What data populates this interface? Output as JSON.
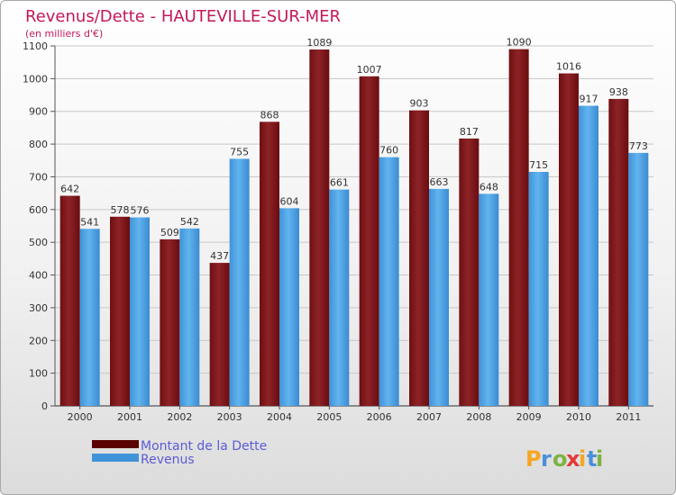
{
  "colors": {
    "title": "#c2185b",
    "dette": "#8b1a1a",
    "dette_dark": "#5a0000",
    "revenus": "#5aaeea",
    "revenus_dark": "#2f86cf",
    "legend_text": "#5b5bd6"
  },
  "chart_data": {
    "type": "bar",
    "title": "Revenus/Dette - HAUTEVILLE-SUR-MER",
    "subtitle": "(en milliers d'€)",
    "categories": [
      "2000",
      "2001",
      "2002",
      "2003",
      "2004",
      "2005",
      "2006",
      "2007",
      "2008",
      "2009",
      "2010",
      "2011"
    ],
    "series": [
      {
        "name": "Montant de la Dette",
        "values": [
          642,
          578,
          509,
          437,
          868,
          1089,
          1007,
          903,
          817,
          1090,
          1016,
          938
        ]
      },
      {
        "name": "Revenus",
        "values": [
          541,
          576,
          542,
          755,
          604,
          661,
          760,
          663,
          648,
          715,
          917,
          773
        ]
      }
    ],
    "ylim": [
      0,
      1100
    ],
    "yticks": [
      0,
      100,
      200,
      300,
      400,
      500,
      600,
      700,
      800,
      900,
      1000,
      1100
    ],
    "grid": true,
    "legend_position": "bottom-left"
  },
  "brand": {
    "letters": [
      "P",
      "r",
      "o",
      "x",
      "i",
      "t",
      "i"
    ],
    "letter_colors": [
      "#f5a623",
      "#4a90d9",
      "#7cb342",
      "#e53935",
      "#f5a623",
      "#4a90d9",
      "#7cb342"
    ]
  }
}
